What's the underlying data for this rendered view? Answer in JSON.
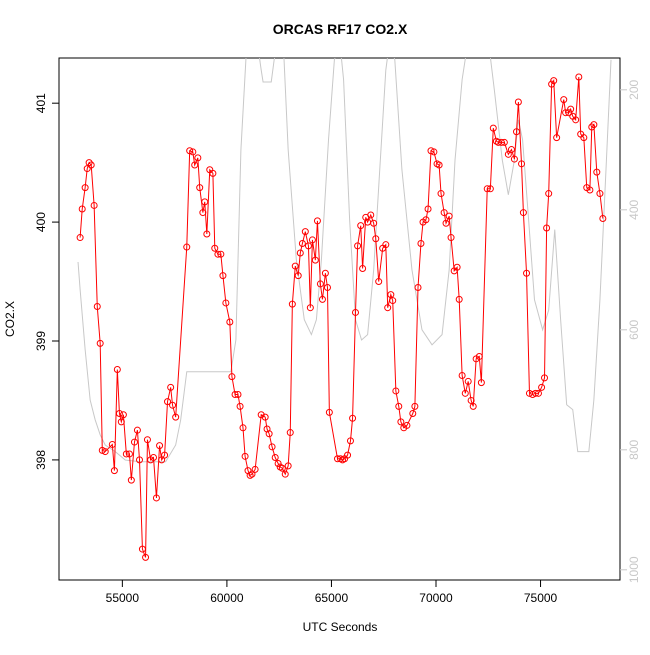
{
  "chart_data": {
    "type": "line",
    "title": "ORCAS RF17 CO2.X",
    "xlabel": "UTC Seconds",
    "ylabel": "CO2.X",
    "xlim": [
      51970,
      78800
    ],
    "xticks": [
      55000,
      60000,
      65000,
      70000,
      75000
    ],
    "ylim": [
      396.99,
      401.38
    ],
    "yticks": [
      398,
      399,
      400,
      401
    ],
    "y2lim": [
      1017,
      147
    ],
    "y2ticks": [
      200,
      400,
      600,
      800,
      1000
    ],
    "series": [
      {
        "color": "#ff0000",
        "markers": true,
        "x": [
          52980,
          53080,
          53220,
          53320,
          53410,
          53510,
          53650,
          53800,
          53940,
          54040,
          54180,
          54520,
          54620,
          54760,
          54860,
          54950,
          55050,
          55190,
          55340,
          55430,
          55580,
          55720,
          55820,
          55960,
          56110,
          56200,
          56350,
          56490,
          56630,
          56780,
          56880,
          57020,
          57160,
          57310,
          57400,
          57550,
          58080,
          58220,
          58370,
          58460,
          58610,
          58700,
          58850,
          58940,
          59040,
          59180,
          59330,
          59420,
          59570,
          59710,
          59810,
          59950,
          60140,
          60240,
          60390,
          60530,
          60630,
          60770,
          60870,
          61010,
          61110,
          61200,
          61350,
          61640,
          61830,
          61920,
          62020,
          62160,
          62310,
          62450,
          62550,
          62650,
          62790,
          62930,
          63030,
          63130,
          63270,
          63410,
          63510,
          63610,
          63750,
          63900,
          63990,
          64090,
          64230,
          64330,
          64470,
          64570,
          64710,
          64810,
          64900,
          65290,
          65430,
          65530,
          65630,
          65770,
          65910,
          66010,
          66150,
          66250,
          66400,
          66490,
          66640,
          66730,
          66880,
          67020,
          67120,
          67260,
          67450,
          67600,
          67690,
          67840,
          67930,
          68080,
          68220,
          68320,
          68460,
          68610,
          68890,
          68990,
          69140,
          69280,
          69380,
          69520,
          69620,
          69760,
          69900,
          70050,
          70150,
          70240,
          70390,
          70480,
          70630,
          70720,
          70870,
          71010,
          71110,
          71250,
          71400,
          71540,
          71680,
          71780,
          71920,
          72070,
          72170,
          72450,
          72600,
          72740,
          72890,
          72980,
          73130,
          73270,
          73460,
          73610,
          73750,
          73850,
          73940,
          74090,
          74180,
          74330,
          74470,
          74620,
          74760,
          74900,
          75050,
          75190,
          75290,
          75390,
          75530,
          75630,
          75770,
          76110,
          76200,
          76350,
          76440,
          76540,
          76680,
          76830,
          76920,
          77070,
          77210,
          77360,
          77450,
          77550,
          77690,
          77840,
          77980
        ],
        "values": [
          399.87,
          400.11,
          400.29,
          400.45,
          400.5,
          400.48,
          400.14,
          399.29,
          398.98,
          398.08,
          398.07,
          398.13,
          397.91,
          398.76,
          398.39,
          398.32,
          398.38,
          398.05,
          398.05,
          397.83,
          398.15,
          398.25,
          398.0,
          397.25,
          397.18,
          398.17,
          398.0,
          398.02,
          397.68,
          398.12,
          398.0,
          398.04,
          398.49,
          398.61,
          398.46,
          398.36,
          399.79,
          400.6,
          400.59,
          400.48,
          400.54,
          400.29,
          400.08,
          400.17,
          399.9,
          400.44,
          400.41,
          399.78,
          399.73,
          399.73,
          399.55,
          399.32,
          399.16,
          398.7,
          398.55,
          398.55,
          398.45,
          398.27,
          398.03,
          397.91,
          397.87,
          397.88,
          397.92,
          398.38,
          398.36,
          398.26,
          398.22,
          398.11,
          398.02,
          397.97,
          397.94,
          397.93,
          397.88,
          397.95,
          398.23,
          399.31,
          399.63,
          399.55,
          399.74,
          399.82,
          399.92,
          399.8,
          399.28,
          399.85,
          399.68,
          400.01,
          399.48,
          399.35,
          399.57,
          399.45,
          398.4,
          398.01,
          398.01,
          398.0,
          398.01,
          398.04,
          398.16,
          398.35,
          399.24,
          399.8,
          399.97,
          399.61,
          400.04,
          400.0,
          400.06,
          399.99,
          399.86,
          399.5,
          399.78,
          399.81,
          399.28,
          399.39,
          399.34,
          398.58,
          398.45,
          398.32,
          398.27,
          398.29,
          398.39,
          398.45,
          399.45,
          399.82,
          400.0,
          400.02,
          400.11,
          400.6,
          400.59,
          400.49,
          400.48,
          400.24,
          400.08,
          399.99,
          400.05,
          399.87,
          399.59,
          399.62,
          399.35,
          398.71,
          398.56,
          398.66,
          398.5,
          398.45,
          398.85,
          398.87,
          398.65,
          400.28,
          400.28,
          400.79,
          400.68,
          400.67,
          400.67,
          400.67,
          400.57,
          400.61,
          400.53,
          400.76,
          401.01,
          400.49,
          400.08,
          399.57,
          398.56,
          398.55,
          398.56,
          398.56,
          398.61,
          398.69,
          399.95,
          400.24,
          401.16,
          401.19,
          400.71,
          401.03,
          400.92,
          400.92,
          400.95,
          400.89,
          400.86,
          401.22,
          400.74,
          400.71,
          400.29,
          400.27,
          400.8,
          400.82,
          400.42,
          400.24,
          400.03
        ]
      },
      {
        "color": "#c8c8c8",
        "axis": "y2",
        "markers": false,
        "x": [
          52880,
          52980,
          53220,
          53460,
          53700,
          53940,
          54180,
          54660,
          55140,
          55870,
          57070,
          57550,
          57790,
          58080,
          60190,
          60430,
          60670,
          60960,
          61440,
          61640,
          61730,
          62120,
          62260,
          62450,
          62690,
          62930,
          63320,
          63700,
          64040,
          64280,
          64520,
          64860,
          65140,
          65390,
          65580,
          65870,
          66150,
          66440,
          66730,
          67020,
          67310,
          67600,
          67790,
          68030,
          68370,
          68850,
          69330,
          69810,
          70290,
          70630,
          70910,
          71250,
          71540,
          72500,
          72790,
          73170,
          73460,
          73750,
          73940,
          74140,
          74430,
          74710,
          75100,
          75390,
          75680,
          75960,
          76250,
          76540,
          76780,
          77310,
          77550,
          77840,
          78130,
          78370
        ],
        "values": [
          487,
          533,
          633,
          717,
          750,
          775,
          792,
          803,
          817,
          820,
          820,
          792,
          750,
          670,
          670,
          617,
          300,
          117,
          117,
          167,
          187,
          187,
          150,
          117,
          117,
          300,
          483,
          583,
          608,
          583,
          483,
          283,
          150,
          117,
          183,
          417,
          583,
          617,
          608,
          500,
          333,
          167,
          117,
          150,
          333,
          500,
          600,
          625,
          608,
          500,
          317,
          183,
          117,
          117,
          200,
          317,
          375,
          317,
          250,
          283,
          417,
          550,
          600,
          567,
          433,
          583,
          725,
          733,
          803,
          803,
          717,
          550,
          333,
          150
        ]
      }
    ]
  }
}
